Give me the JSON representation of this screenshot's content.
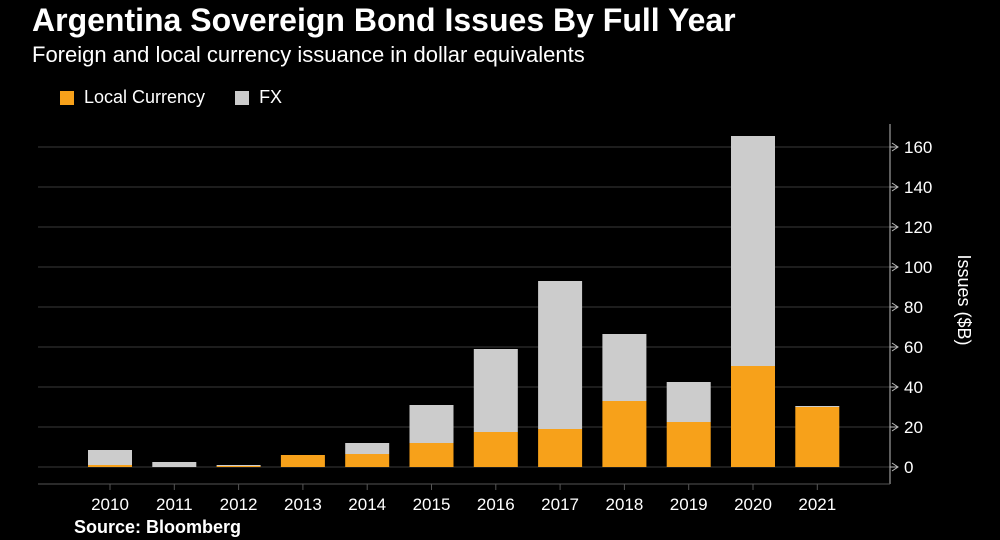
{
  "chart_data": {
    "type": "bar",
    "stacked": true,
    "title": "Argentina Sovereign Bond Issues By Full Year",
    "subtitle": "Foreign and local currency issuance in dollar equivalents",
    "source": "Source:  Bloomberg",
    "ylabel": "Issues ($B)",
    "xlabel": "",
    "ylim": [
      0,
      170
    ],
    "yticks": [
      0,
      20,
      40,
      60,
      80,
      100,
      120,
      140,
      160
    ],
    "grid": true,
    "y_axis_side": "right",
    "legend_placement": "top-left",
    "categories": [
      "2010",
      "2011",
      "2012",
      "2013",
      "2014",
      "2015",
      "2016",
      "2017",
      "2018",
      "2019",
      "2020",
      "2021"
    ],
    "series": [
      {
        "name": "Local Currency",
        "color": "#f7a11a",
        "values": [
          1,
          0,
          0.5,
          6,
          6.5,
          12,
          17.5,
          19,
          33,
          22.5,
          50.5,
          30
        ]
      },
      {
        "name": "FX",
        "color": "#cccccc",
        "values": [
          7.5,
          2.5,
          0.5,
          0,
          5.5,
          19,
          41.5,
          74,
          33.5,
          20,
          115,
          0.5
        ]
      }
    ]
  }
}
